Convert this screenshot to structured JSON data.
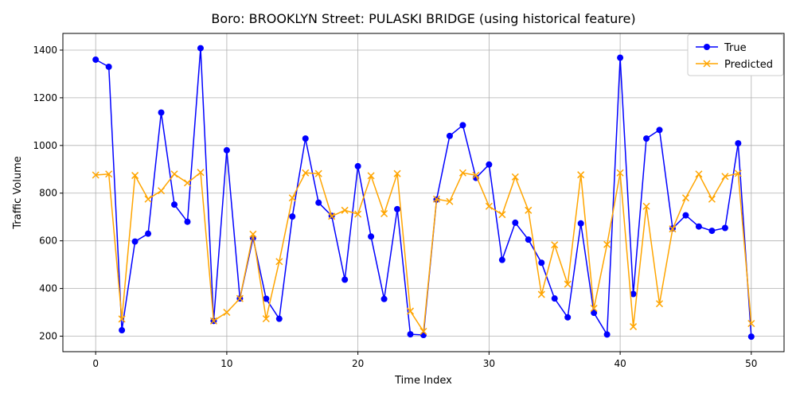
{
  "chart_data": {
    "type": "line",
    "title": "Boro: BROOKLYN Street: PULASKI BRIDGE (using historical feature)",
    "xlabel": "Time Index",
    "ylabel": "Traffic Volume",
    "xlim": [
      -2.5,
      52.5
    ],
    "ylim": [
      135,
      1470
    ],
    "xticks": [
      0,
      10,
      20,
      30,
      40,
      50
    ],
    "yticks": [
      200,
      400,
      600,
      800,
      1000,
      1200,
      1400
    ],
    "grid": true,
    "legend_position": "top-right",
    "x": [
      0,
      1,
      2,
      3,
      4,
      5,
      6,
      7,
      8,
      9,
      10,
      11,
      12,
      13,
      14,
      15,
      16,
      17,
      18,
      19,
      20,
      21,
      22,
      23,
      24,
      25,
      26,
      27,
      28,
      29,
      30,
      31,
      32,
      33,
      34,
      35,
      36,
      37,
      38,
      39,
      40,
      41,
      42,
      43,
      44,
      45,
      46,
      47,
      48,
      49,
      50
    ],
    "series": [
      {
        "name": "True",
        "color": "#0000ff",
        "marker": "circle",
        "values": [
          1360,
          1330,
          225,
          597,
          630,
          1138,
          752,
          680,
          1408,
          264,
          980,
          358,
          612,
          357,
          273,
          702,
          1029,
          760,
          705,
          437,
          913,
          618,
          356,
          733,
          208,
          205,
          773,
          1040,
          1085,
          864,
          920,
          520,
          676,
          605,
          508,
          358,
          279,
          673,
          298,
          207,
          1368,
          377,
          1029,
          1065,
          652,
          707,
          660,
          642,
          654,
          1009,
          198
        ]
      },
      {
        "name": "Predicted",
        "color": "#ffa500",
        "marker": "x",
        "values": [
          876,
          880,
          272,
          874,
          775,
          810,
          880,
          843,
          887,
          264,
          300,
          358,
          628,
          273,
          513,
          780,
          885,
          882,
          703,
          728,
          712,
          873,
          714,
          882,
          305,
          220,
          775,
          765,
          885,
          875,
          745,
          710,
          868,
          728,
          375,
          583,
          418,
          877,
          317,
          585,
          885,
          240,
          745,
          336,
          650,
          780,
          880,
          775,
          870,
          883,
          253
        ]
      }
    ]
  }
}
